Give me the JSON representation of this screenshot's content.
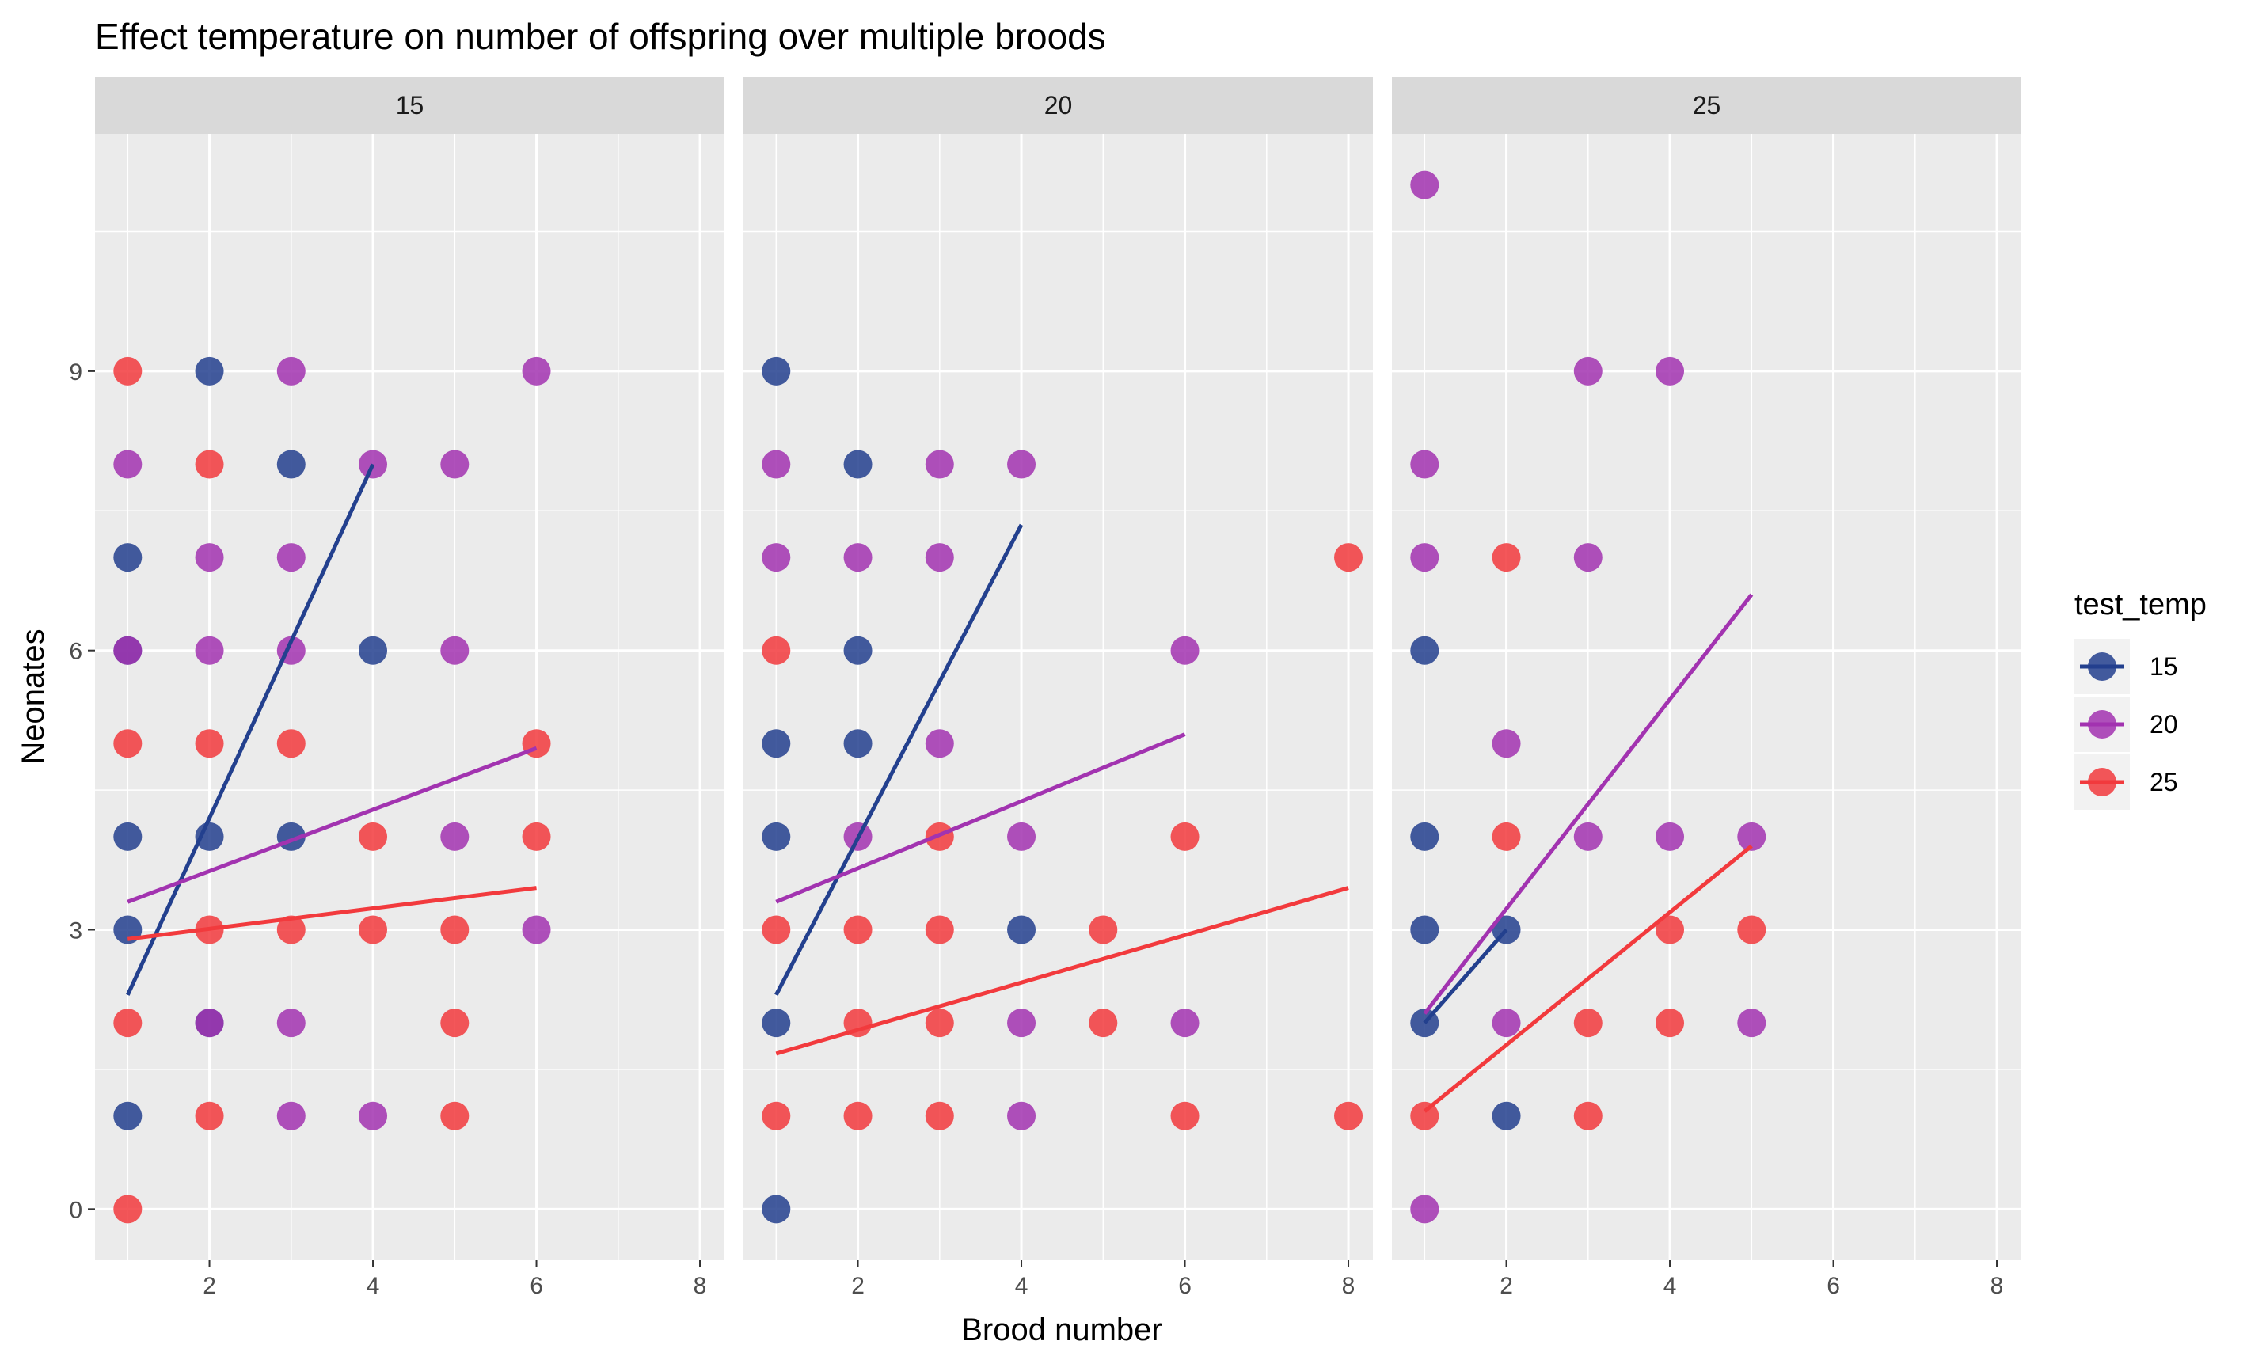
{
  "chart_data": {
    "type": "scatter",
    "title": "Effect temperature on number of offspring over multiple broods",
    "xlabel": "Brood number",
    "ylabel": "Neonates",
    "xlim": [
      0.6,
      8.3
    ],
    "ylim": [
      -0.55,
      11.55
    ],
    "x_ticks": [
      2,
      4,
      6,
      8
    ],
    "y_ticks": [
      0,
      3,
      6,
      9
    ],
    "grid": true,
    "legend": {
      "title": "test_temp",
      "placement": "right"
    },
    "series_colors": {
      "15": "#23408E",
      "20": "#A233B0",
      "25": "#F23A3D"
    },
    "panel_background": "#EBEBEB",
    "strip_background": "#D9D9D9",
    "panels": [
      {
        "label": "15",
        "points": [
          {
            "series": "25",
            "x": 1,
            "y": 9
          },
          {
            "series": "20",
            "x": 1,
            "y": 8
          },
          {
            "series": "15",
            "x": 1,
            "y": 7
          },
          {
            "series": "15",
            "x": 1,
            "y": 6
          },
          {
            "series": "20",
            "x": 1,
            "y": 6
          },
          {
            "series": "25",
            "x": 1,
            "y": 5
          },
          {
            "series": "15",
            "x": 1,
            "y": 4
          },
          {
            "series": "15",
            "x": 1,
            "y": 3
          },
          {
            "series": "25",
            "x": 1,
            "y": 2
          },
          {
            "series": "15",
            "x": 1,
            "y": 1
          },
          {
            "series": "25",
            "x": 1,
            "y": 0
          },
          {
            "series": "15",
            "x": 2,
            "y": 9
          },
          {
            "series": "25",
            "x": 2,
            "y": 8
          },
          {
            "series": "20",
            "x": 2,
            "y": 7
          },
          {
            "series": "20",
            "x": 2,
            "y": 6
          },
          {
            "series": "25",
            "x": 2,
            "y": 5
          },
          {
            "series": "15",
            "x": 2,
            "y": 4
          },
          {
            "series": "25",
            "x": 2,
            "y": 3
          },
          {
            "series": "15",
            "x": 2,
            "y": 2
          },
          {
            "series": "20",
            "x": 2,
            "y": 2
          },
          {
            "series": "25",
            "x": 2,
            "y": 1
          },
          {
            "series": "20",
            "x": 3,
            "y": 9
          },
          {
            "series": "15",
            "x": 3,
            "y": 8
          },
          {
            "series": "20",
            "x": 3,
            "y": 7
          },
          {
            "series": "20",
            "x": 3,
            "y": 6
          },
          {
            "series": "25",
            "x": 3,
            "y": 5
          },
          {
            "series": "15",
            "x": 3,
            "y": 4
          },
          {
            "series": "25",
            "x": 3,
            "y": 3
          },
          {
            "series": "20",
            "x": 3,
            "y": 2
          },
          {
            "series": "20",
            "x": 3,
            "y": 1
          },
          {
            "series": "20",
            "x": 4,
            "y": 8
          },
          {
            "series": "15",
            "x": 4,
            "y": 6
          },
          {
            "series": "25",
            "x": 4,
            "y": 4
          },
          {
            "series": "25",
            "x": 4,
            "y": 3
          },
          {
            "series": "20",
            "x": 4,
            "y": 1
          },
          {
            "series": "20",
            "x": 5,
            "y": 8
          },
          {
            "series": "20",
            "x": 5,
            "y": 6
          },
          {
            "series": "20",
            "x": 5,
            "y": 4
          },
          {
            "series": "25",
            "x": 5,
            "y": 3
          },
          {
            "series": "25",
            "x": 5,
            "y": 2
          },
          {
            "series": "25",
            "x": 5,
            "y": 1
          },
          {
            "series": "20",
            "x": 6,
            "y": 9
          },
          {
            "series": "25",
            "x": 6,
            "y": 5
          },
          {
            "series": "25",
            "x": 6,
            "y": 4
          },
          {
            "series": "20",
            "x": 6,
            "y": 3
          }
        ],
        "fits": [
          {
            "series": "15",
            "x": [
              1,
              4
            ],
            "y": [
              2.3,
              8.0
            ]
          },
          {
            "series": "20",
            "x": [
              1,
              6
            ],
            "y": [
              3.3,
              4.95
            ]
          },
          {
            "series": "25",
            "x": [
              1,
              6
            ],
            "y": [
              2.9,
              3.45
            ]
          }
        ]
      },
      {
        "label": "20",
        "points": [
          {
            "series": "15",
            "x": 1,
            "y": 9
          },
          {
            "series": "20",
            "x": 1,
            "y": 8
          },
          {
            "series": "20",
            "x": 1,
            "y": 7
          },
          {
            "series": "25",
            "x": 1,
            "y": 6
          },
          {
            "series": "15",
            "x": 1,
            "y": 5
          },
          {
            "series": "15",
            "x": 1,
            "y": 4
          },
          {
            "series": "25",
            "x": 1,
            "y": 3
          },
          {
            "series": "15",
            "x": 1,
            "y": 2
          },
          {
            "series": "25",
            "x": 1,
            "y": 1
          },
          {
            "series": "15",
            "x": 1,
            "y": 0
          },
          {
            "series": "15",
            "x": 2,
            "y": 8
          },
          {
            "series": "20",
            "x": 2,
            "y": 7
          },
          {
            "series": "15",
            "x": 2,
            "y": 6
          },
          {
            "series": "15",
            "x": 2,
            "y": 5
          },
          {
            "series": "20",
            "x": 2,
            "y": 4
          },
          {
            "series": "25",
            "x": 2,
            "y": 3
          },
          {
            "series": "25",
            "x": 2,
            "y": 2
          },
          {
            "series": "25",
            "x": 2,
            "y": 1
          },
          {
            "series": "20",
            "x": 3,
            "y": 8
          },
          {
            "series": "20",
            "x": 3,
            "y": 7
          },
          {
            "series": "20",
            "x": 3,
            "y": 5
          },
          {
            "series": "25",
            "x": 3,
            "y": 4
          },
          {
            "series": "25",
            "x": 3,
            "y": 3
          },
          {
            "series": "25",
            "x": 3,
            "y": 2
          },
          {
            "series": "25",
            "x": 3,
            "y": 1
          },
          {
            "series": "20",
            "x": 4,
            "y": 8
          },
          {
            "series": "20",
            "x": 4,
            "y": 4
          },
          {
            "series": "15",
            "x": 4,
            "y": 3
          },
          {
            "series": "20",
            "x": 4,
            "y": 2
          },
          {
            "series": "20",
            "x": 4,
            "y": 1
          },
          {
            "series": "25",
            "x": 5,
            "y": 3
          },
          {
            "series": "25",
            "x": 5,
            "y": 2
          },
          {
            "series": "20",
            "x": 6,
            "y": 6
          },
          {
            "series": "25",
            "x": 6,
            "y": 4
          },
          {
            "series": "20",
            "x": 6,
            "y": 2
          },
          {
            "series": "25",
            "x": 6,
            "y": 1
          },
          {
            "series": "25",
            "x": 8,
            "y": 7
          },
          {
            "series": "25",
            "x": 8,
            "y": 1
          }
        ],
        "fits": [
          {
            "series": "15",
            "x": [
              1,
              4
            ],
            "y": [
              2.3,
              7.35
            ]
          },
          {
            "series": "20",
            "x": [
              1,
              6
            ],
            "y": [
              3.3,
              5.1
            ]
          },
          {
            "series": "25",
            "x": [
              1,
              8
            ],
            "y": [
              1.67,
              3.45
            ]
          }
        ]
      },
      {
        "label": "25",
        "points": [
          {
            "series": "20",
            "x": 1,
            "y": 11
          },
          {
            "series": "20",
            "x": 1,
            "y": 8
          },
          {
            "series": "20",
            "x": 1,
            "y": 7
          },
          {
            "series": "15",
            "x": 1,
            "y": 6
          },
          {
            "series": "15",
            "x": 1,
            "y": 4
          },
          {
            "series": "15",
            "x": 1,
            "y": 3
          },
          {
            "series": "15",
            "x": 1,
            "y": 2
          },
          {
            "series": "25",
            "x": 1,
            "y": 1
          },
          {
            "series": "20",
            "x": 1,
            "y": 0
          },
          {
            "series": "25",
            "x": 2,
            "y": 7
          },
          {
            "series": "20",
            "x": 2,
            "y": 5
          },
          {
            "series": "25",
            "x": 2,
            "y": 4
          },
          {
            "series": "15",
            "x": 2,
            "y": 3
          },
          {
            "series": "20",
            "x": 2,
            "y": 2
          },
          {
            "series": "15",
            "x": 2,
            "y": 1
          },
          {
            "series": "20",
            "x": 3,
            "y": 9
          },
          {
            "series": "20",
            "x": 3,
            "y": 7
          },
          {
            "series": "20",
            "x": 3,
            "y": 4
          },
          {
            "series": "25",
            "x": 3,
            "y": 2
          },
          {
            "series": "25",
            "x": 3,
            "y": 1
          },
          {
            "series": "20",
            "x": 4,
            "y": 9
          },
          {
            "series": "20",
            "x": 4,
            "y": 4
          },
          {
            "series": "25",
            "x": 4,
            "y": 3
          },
          {
            "series": "25",
            "x": 4,
            "y": 2
          },
          {
            "series": "20",
            "x": 5,
            "y": 4
          },
          {
            "series": "25",
            "x": 5,
            "y": 3
          },
          {
            "series": "20",
            "x": 5,
            "y": 2
          }
        ],
        "fits": [
          {
            "series": "15",
            "x": [
              1,
              2
            ],
            "y": [
              2.0,
              3.0
            ]
          },
          {
            "series": "20",
            "x": [
              1,
              5
            ],
            "y": [
              2.1,
              6.6
            ]
          },
          {
            "series": "25",
            "x": [
              1,
              5
            ],
            "y": [
              1.05,
              3.9
            ]
          }
        ]
      }
    ]
  }
}
